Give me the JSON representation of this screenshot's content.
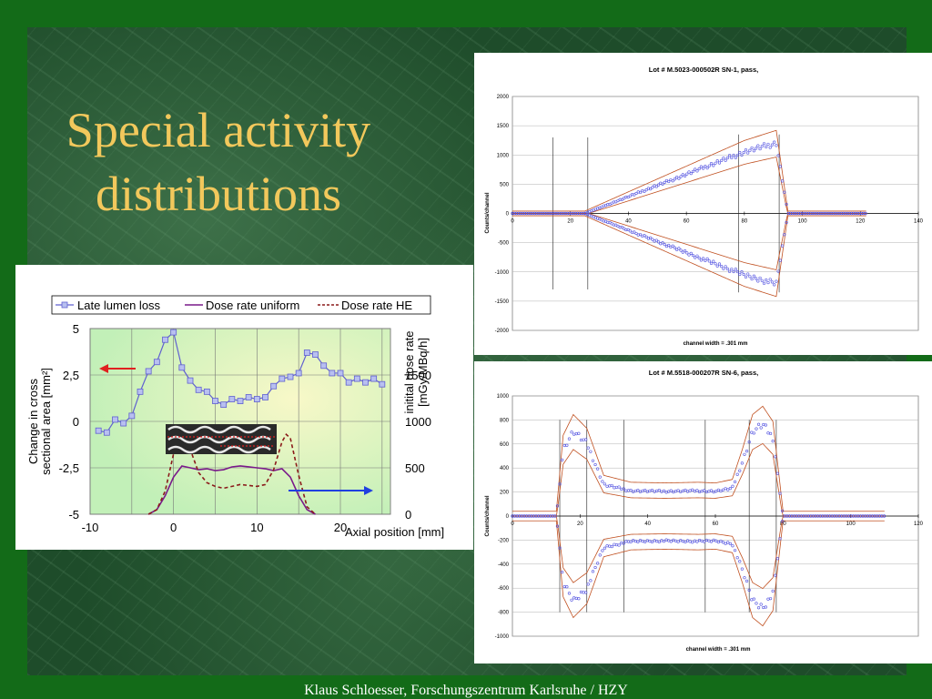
{
  "slide": {
    "title_line1": "Special activity",
    "title_line2": "distributions",
    "footer": "Klaus Schloesser,  Forschungszentrum Karlsruhe / HZY"
  },
  "colors": {
    "title": "#f2c85c",
    "late_lumen": "#6060d0",
    "uniform": "#7a1a8a",
    "he": "#8b1a1a",
    "arrow_red": "#e02020",
    "arrow_blue": "#2040e0"
  },
  "chart_data": [
    {
      "type": "line",
      "legend": [
        "Late lumen loss",
        "Dose rate uniform",
        "Dose rate HE"
      ],
      "ylabel": "Change in cross sectional area [mm²]",
      "ylabel2": "initial dose rate [mGy/MBq/h]",
      "xlabel": "Axial position [mm]",
      "x_ticks": [
        "-10",
        "0",
        "10",
        "20"
      ],
      "y_ticks": [
        "5",
        "2,5",
        "0",
        "-2,5",
        "-5"
      ],
      "y2_ticks": [
        "1500",
        "1000",
        "500",
        "0"
      ],
      "xlim": [
        -10,
        26
      ],
      "ylim": [
        -5,
        5
      ],
      "y2lim": [
        0,
        2000
      ],
      "series": [
        {
          "name": "Late lumen loss",
          "x": [
            -9,
            -8,
            -7,
            -6,
            -5,
            -4,
            -3,
            -2,
            -1,
            0,
            1,
            2,
            3,
            4,
            5,
            6,
            7,
            8,
            9,
            10,
            11,
            12,
            13,
            14,
            15,
            16,
            17,
            18,
            19,
            20,
            21,
            22,
            23,
            24,
            25
          ],
          "values": [
            -0.5,
            -0.6,
            0.1,
            -0.1,
            0.3,
            1.6,
            2.7,
            3.2,
            4.4,
            4.8,
            2.9,
            2.2,
            1.7,
            1.6,
            1.1,
            0.9,
            1.2,
            1.1,
            1.3,
            1.2,
            1.3,
            1.9,
            2.3,
            2.4,
            2.6,
            3.7,
            3.6,
            3.0,
            2.6,
            2.6,
            2.1,
            2.3,
            2.1,
            2.3,
            2.0
          ]
        },
        {
          "name": "Dose rate uniform",
          "x": [
            -3,
            -2,
            -1,
            0,
            1,
            2,
            3,
            4,
            5,
            6,
            7,
            8,
            9,
            10,
            11,
            12,
            13,
            14,
            15,
            16,
            17
          ],
          "values": [
            0,
            50,
            200,
            400,
            520,
            500,
            480,
            490,
            470,
            480,
            510,
            520,
            510,
            500,
            490,
            470,
            490,
            400,
            200,
            50,
            0
          ]
        },
        {
          "name": "Dose rate HE",
          "x": [
            -3,
            -2,
            -1,
            0,
            0.5,
            1,
            2,
            3,
            4,
            5,
            6,
            7,
            8,
            9,
            10,
            11,
            12,
            13,
            13.5,
            14,
            15,
            16,
            17
          ],
          "values": [
            0,
            50,
            250,
            650,
            880,
            950,
            700,
            450,
            340,
            300,
            280,
            300,
            320,
            310,
            300,
            320,
            480,
            780,
            860,
            820,
            420,
            80,
            0
          ]
        }
      ]
    },
    {
      "type": "scatter",
      "title": "Lot # M.5023-000502R SN-1, pass,",
      "ylabel": "Counts/channel",
      "xlabel": "channel width =   .301 mm",
      "x_ticks": [
        "0",
        "20",
        "40",
        "60",
        "80",
        "100",
        "120",
        "140"
      ],
      "y_ticks": [
        "2000",
        "1500",
        "1000",
        "500",
        "0",
        "-500",
        "-1000",
        "-1500",
        "-2000"
      ],
      "xlim": [
        0,
        140
      ],
      "ylim": [
        -2000,
        2000
      ],
      "profile": {
        "x": [
          0,
          25,
          80,
          91,
          95,
          100,
          122
        ],
        "values": [
          0,
          0,
          1050,
          1200,
          0,
          0,
          0
        ]
      }
    },
    {
      "type": "scatter",
      "title": "Lot # M.5518-000207R SN-6, pass,",
      "ylabel": "Counts/channel",
      "xlabel": "channel width =   .301 mm",
      "x_ticks": [
        "0",
        "20",
        "40",
        "60",
        "80",
        "100",
        "120"
      ],
      "y_ticks": [
        "1000",
        "800",
        "600",
        "400",
        "200",
        "0",
        "-200",
        "-400",
        "-600",
        "-800",
        "-1000"
      ],
      "xlim": [
        0,
        120
      ],
      "ylim": [
        -1000,
        1000
      ],
      "profile": {
        "x": [
          0,
          13,
          15,
          18,
          22,
          27,
          35,
          45,
          55,
          60,
          65,
          68,
          71,
          74,
          77,
          80,
          110
        ],
        "values": [
          0,
          0,
          550,
          700,
          600,
          260,
          210,
          205,
          210,
          205,
          230,
          450,
          700,
          760,
          650,
          0,
          0
        ]
      }
    }
  ]
}
